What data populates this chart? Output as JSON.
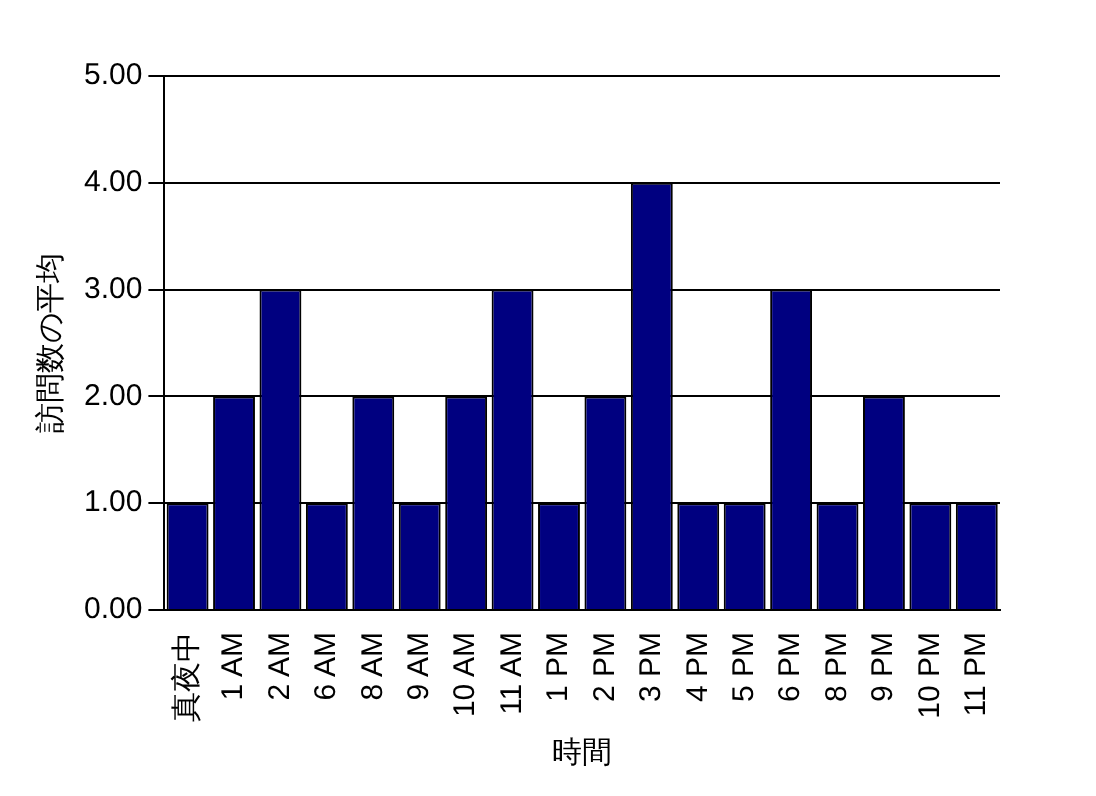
{
  "chart_data": {
    "type": "bar",
    "xlabel": "時間",
    "ylabel": "訪問数の平均",
    "categories": [
      "真夜中",
      "1 AM",
      "2 AM",
      "6 AM",
      "8 AM",
      "9 AM",
      "10 AM",
      "11 AM",
      "1 PM",
      "2 PM",
      "3 PM",
      "4 PM",
      "5 PM",
      "6 PM",
      "8 PM",
      "9 PM",
      "10 PM",
      "11 PM"
    ],
    "values": [
      1,
      2,
      3,
      1,
      2,
      1,
      2,
      3,
      1,
      2,
      4,
      1,
      1,
      3,
      1,
      2,
      1,
      1
    ],
    "color": "#000080",
    "ylim": [
      0,
      5
    ],
    "yticks": [
      {
        "value": 0,
        "label": "0.00"
      },
      {
        "value": 1,
        "label": "1.00"
      },
      {
        "value": 2,
        "label": "2.00"
      },
      {
        "value": 3,
        "label": "3.00"
      },
      {
        "value": 4,
        "label": "4.00"
      },
      {
        "value": 5,
        "label": "5.00"
      }
    ],
    "grid": "y",
    "legend": false
  }
}
